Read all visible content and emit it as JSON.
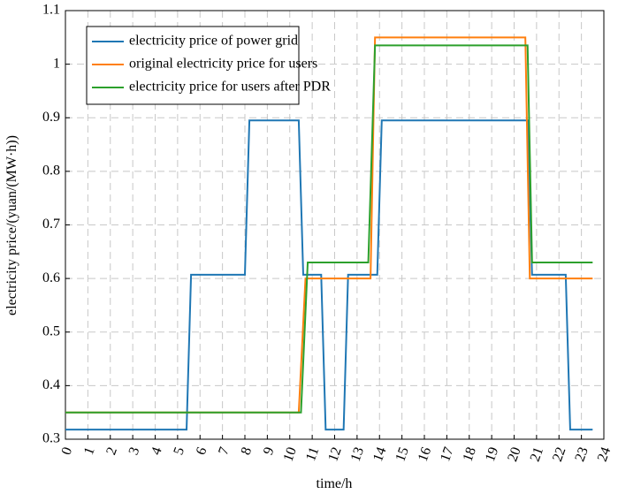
{
  "chart_data": {
    "type": "line",
    "xlabel": "time/h",
    "ylabel": "electricity price/(yuan/(MW·h))",
    "xlim": [
      0,
      24
    ],
    "xticks": [
      0,
      1,
      2,
      3,
      4,
      5,
      6,
      7,
      8,
      9,
      10,
      11,
      12,
      13,
      14,
      15,
      16,
      17,
      18,
      19,
      20,
      21,
      22,
      23,
      24
    ],
    "ylim": [
      0.3,
      1.1
    ],
    "yticks": [
      0.3,
      0.4,
      0.5,
      0.6,
      0.7,
      0.8,
      0.9,
      1,
      1.1
    ],
    "grid": true,
    "legend": "upper left",
    "series": [
      {
        "name": "electricity price of power grid",
        "color": "#1f77b4",
        "x": [
          0,
          5.4,
          5.6,
          8,
          8.2,
          10.4,
          10.6,
          11.4,
          11.6,
          12.4,
          12.6,
          13.9,
          14.1,
          20.6,
          20.8,
          22.3,
          22.5,
          23.5
        ],
        "values": [
          0.318,
          0.318,
          0.607,
          0.607,
          0.895,
          0.895,
          0.607,
          0.607,
          0.318,
          0.318,
          0.607,
          0.607,
          0.895,
          0.895,
          0.607,
          0.607,
          0.318,
          0.318
        ]
      },
      {
        "name": "original electricity price for users",
        "color": "#ff7f0e",
        "x": [
          0,
          10.4,
          10.7,
          13.6,
          13.8,
          20.5,
          20.7,
          23.5
        ],
        "values": [
          0.35,
          0.35,
          0.6,
          0.6,
          1.05,
          1.05,
          0.6,
          0.6
        ]
      },
      {
        "name": "electricity price for users after PDR",
        "color": "#2ca02c",
        "x": [
          0,
          10.5,
          10.8,
          13.5,
          13.8,
          20.6,
          20.8,
          23.5
        ],
        "values": [
          0.35,
          0.35,
          0.63,
          0.63,
          1.035,
          1.035,
          0.63,
          0.63
        ]
      }
    ]
  }
}
